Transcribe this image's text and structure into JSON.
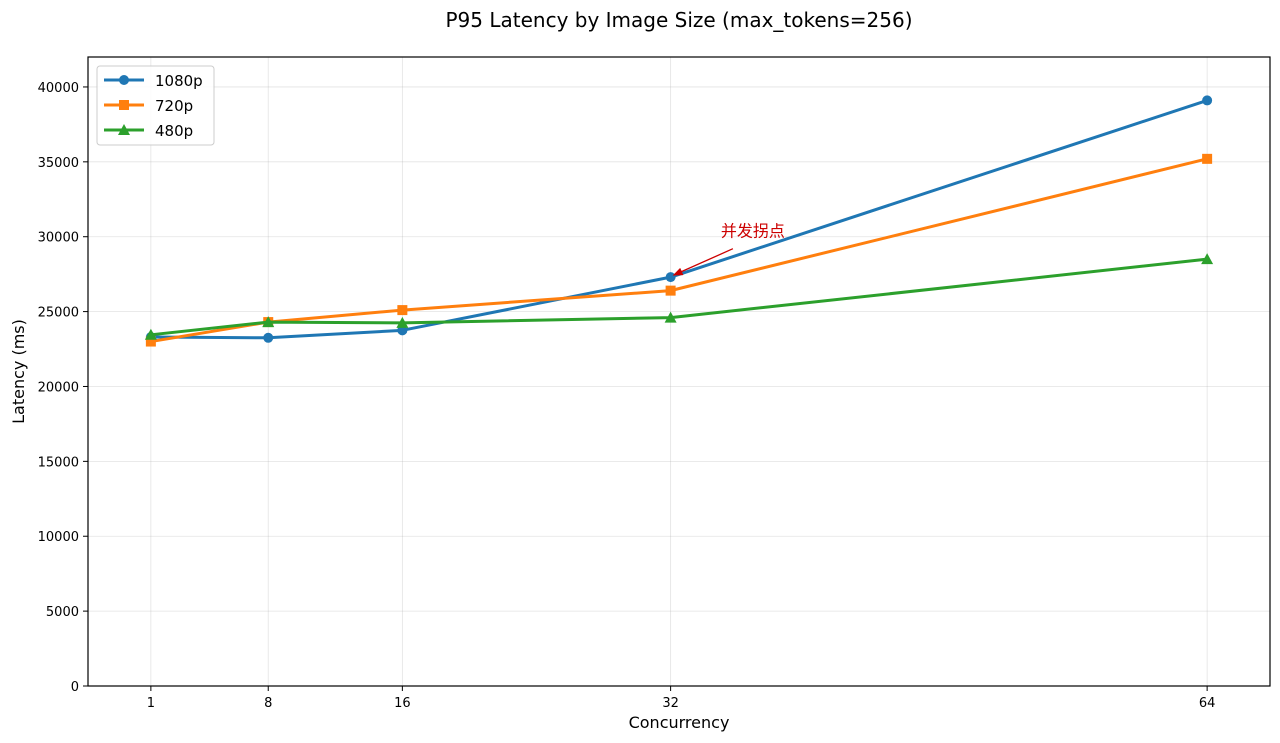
{
  "chart_data": {
    "type": "line",
    "title": "P95 Latency by Image Size (max_tokens=256)",
    "xlabel": "Concurrency",
    "ylabel": "Latency (ms)",
    "x": [
      1,
      8,
      16,
      32,
      64
    ],
    "x_tick_labels": [
      "1",
      "8",
      "16",
      "32",
      "64"
    ],
    "xlim": [
      -2.75,
      67.75
    ],
    "ylim": [
      0,
      42000
    ],
    "y_ticks": [
      0,
      5000,
      10000,
      15000,
      20000,
      25000,
      30000,
      35000,
      40000
    ],
    "y_tick_labels": [
      "0",
      "5000",
      "10000",
      "15000",
      "20000",
      "25000",
      "30000",
      "35000",
      "40000"
    ],
    "grid": true,
    "legend_position": "top-left",
    "series": [
      {
        "name": "1080p",
        "color": "#1f77b4",
        "marker": "circle",
        "values": [
          23300,
          23250,
          23750,
          27300,
          39100
        ]
      },
      {
        "name": "720p",
        "color": "#ff7f0e",
        "marker": "square",
        "values": [
          23000,
          24300,
          25100,
          26400,
          35200
        ]
      },
      {
        "name": "480p",
        "color": "#2ca02c",
        "marker": "triangle",
        "values": [
          23450,
          24300,
          24250,
          24600,
          28500
        ]
      }
    ],
    "annotations": [
      {
        "text": "并发拐点",
        "color": "#cc0000",
        "point": {
          "x": 32,
          "y": 27300
        },
        "text_at": {
          "x": 35,
          "y": 30000
        }
      }
    ]
  }
}
